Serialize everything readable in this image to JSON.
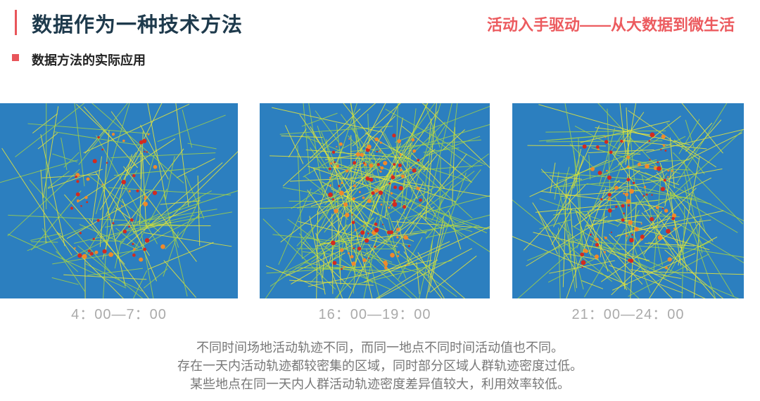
{
  "header": {
    "title": "数据作为一种技术方法",
    "subtitle": "活动入手驱动——从大数据到微生活"
  },
  "section": "数据方法的实际应用",
  "panels": [
    {
      "caption": "4：00—7：00"
    },
    {
      "caption": "16：00—19：00"
    },
    {
      "caption": "21：00—24：00"
    }
  ],
  "paragraph": [
    "不同时间场地活动轨迹不同，而同一地点不同时间活动值也不同。",
    "存在一天内活动轨迹都较密集的区域，同时部分区域人群轨迹密度过低。",
    "某些地点在同一天内人群活动轨迹密度差异值较大，利用效率较低。"
  ]
}
